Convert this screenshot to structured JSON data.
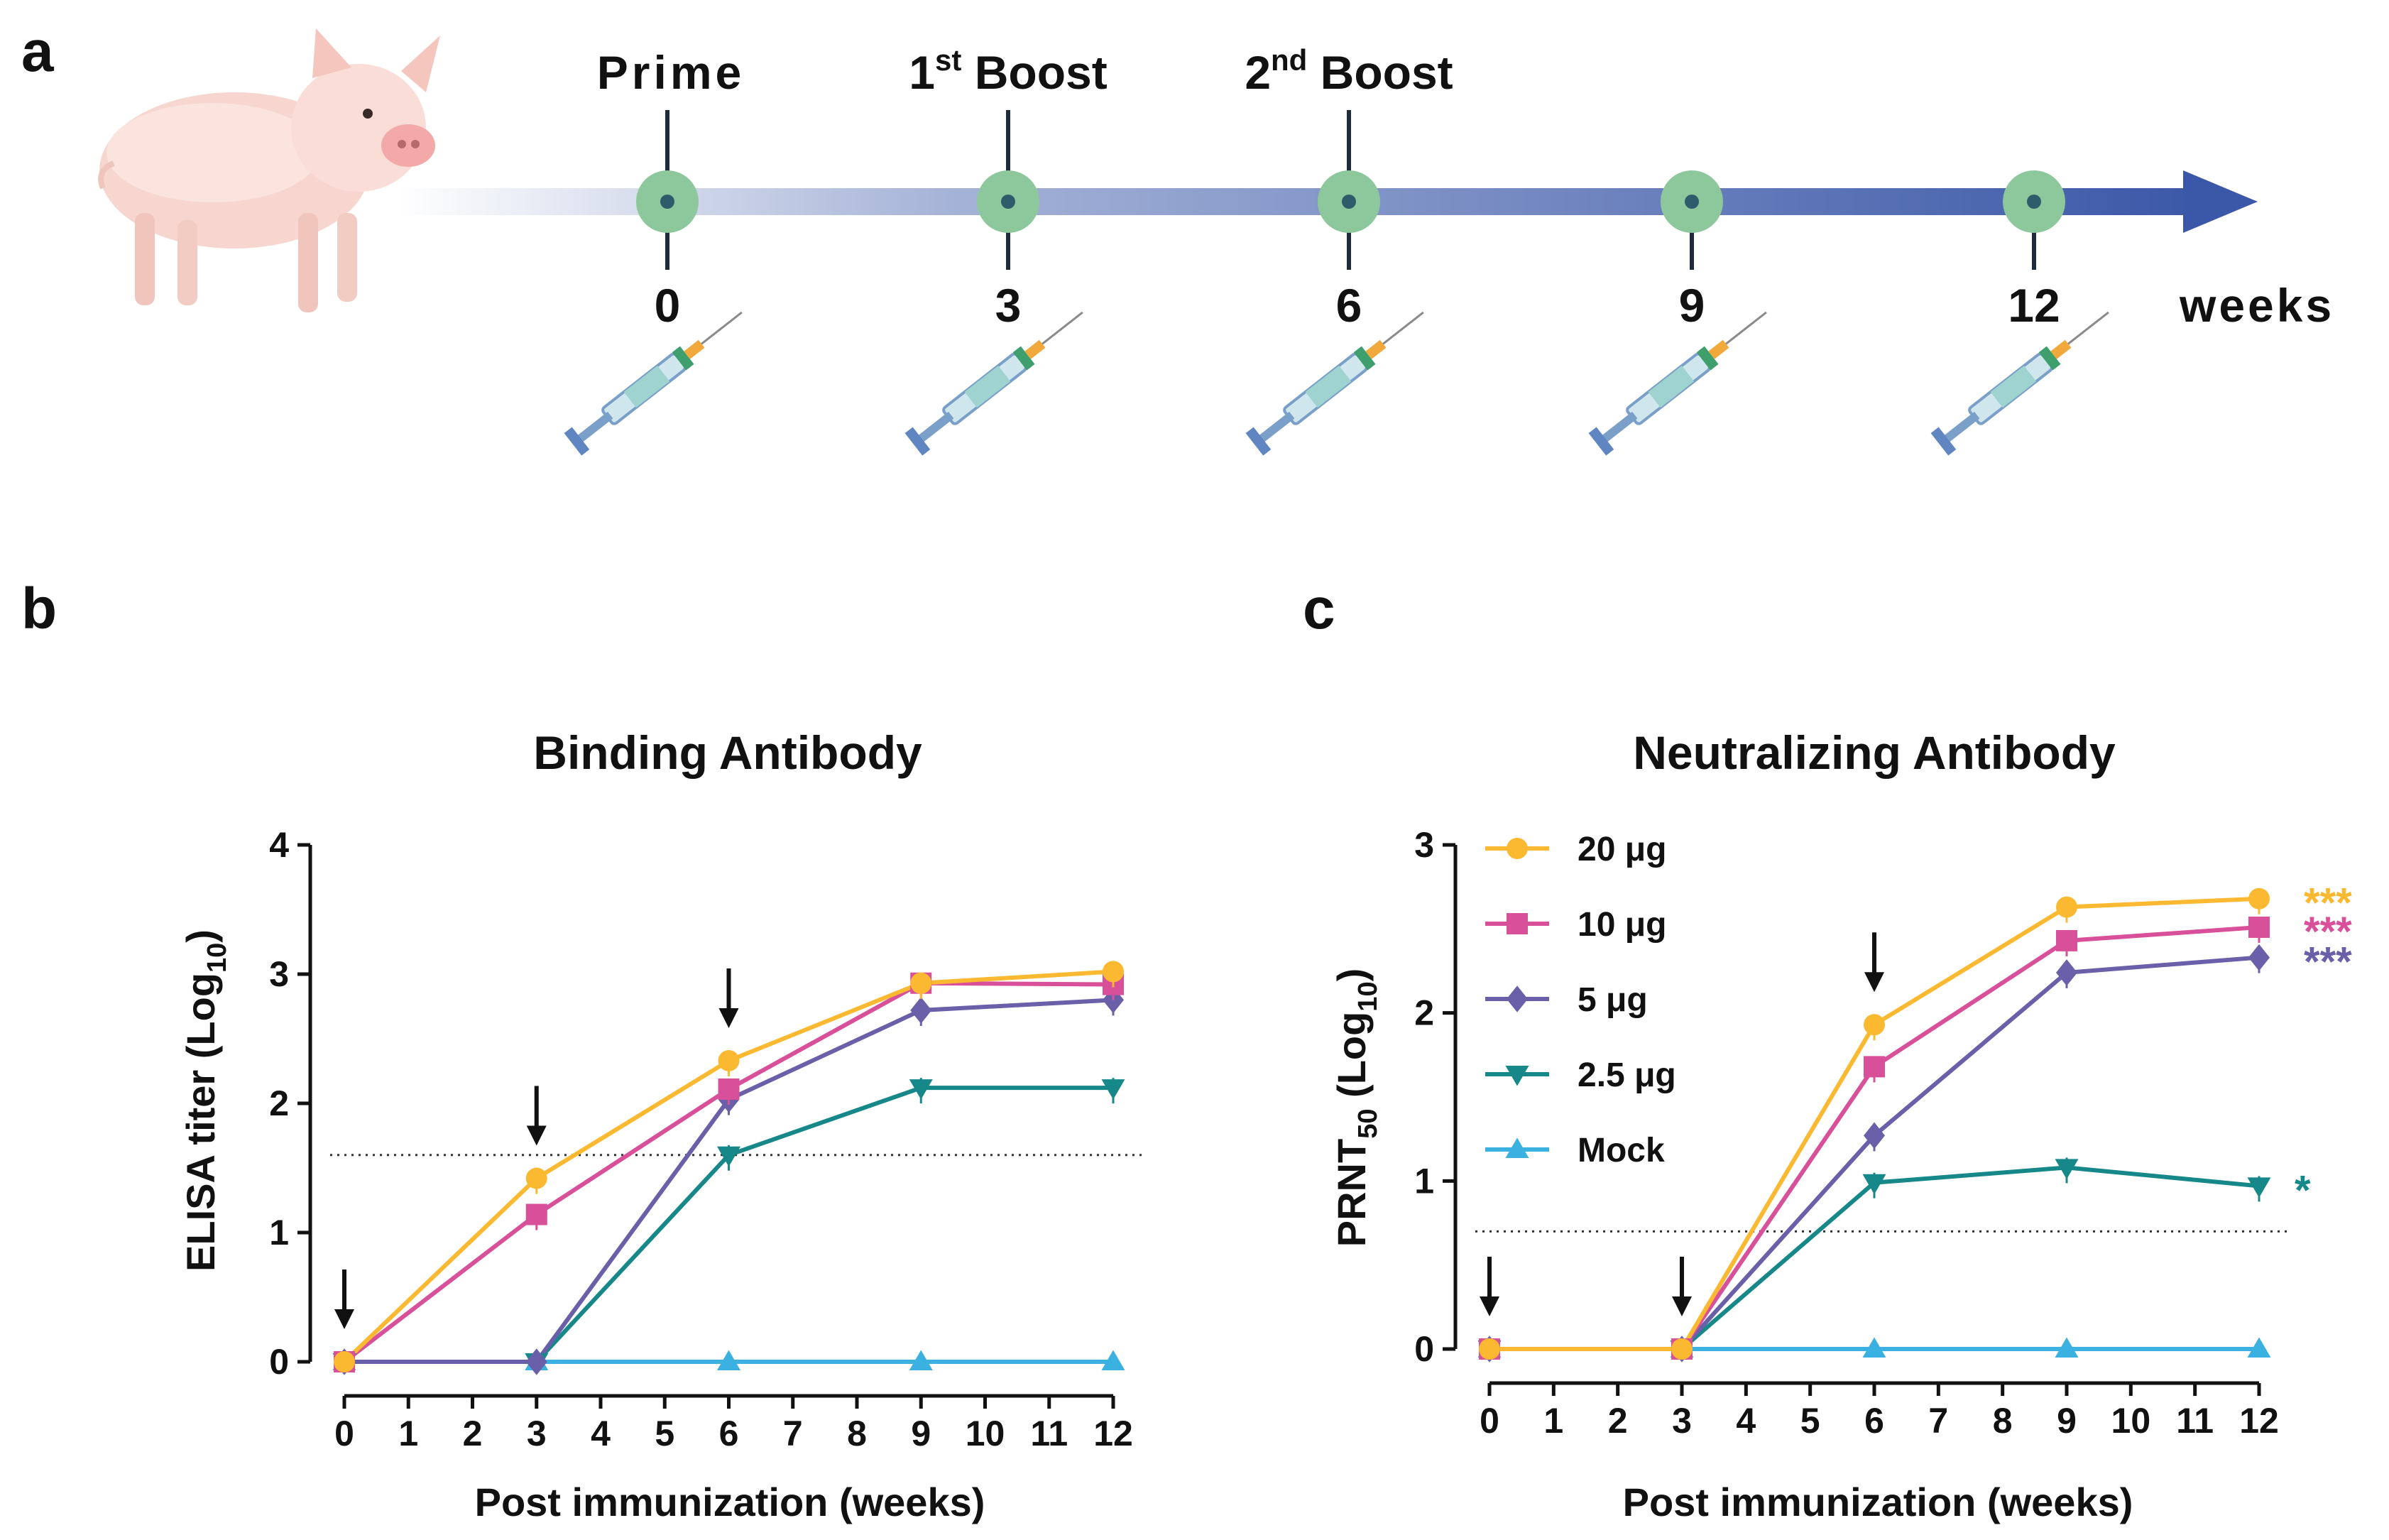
{
  "panels": {
    "a": "a",
    "b": "b",
    "c": "c"
  },
  "timeline": {
    "events": [
      {
        "label": "Prime",
        "week": 0
      },
      {
        "label_pre": "1",
        "label_sup": "st",
        "label_post": " Boost",
        "week": 3
      },
      {
        "label_pre": "2",
        "label_sup": "nd",
        "label_post": " Boost",
        "week": 6
      }
    ],
    "weeks": [
      "0",
      "3",
      "6",
      "9",
      "12"
    ],
    "unit": "weeks",
    "colors": {
      "arrow": "#3b58a8",
      "node": "#8dc89d",
      "node_dot": "#2f5c6b",
      "stem": "#1e2b3c"
    },
    "icons": [
      "pig-illustration",
      "syringe-icon"
    ]
  },
  "legend": [
    {
      "label": "20 μg",
      "color": "#fbb931",
      "marker": "circle"
    },
    {
      "label": "10 μg",
      "color": "#d9509a",
      "marker": "square"
    },
    {
      "label": "5 μg",
      "color": "#6a5fa9",
      "marker": "diamond"
    },
    {
      "label": "2.5 μg",
      "color": "#17888a",
      "marker": "triangle-down"
    },
    {
      "label": "Mock",
      "color": "#3ab1e1",
      "marker": "triangle-up"
    }
  ],
  "chart_data": [
    {
      "type": "line",
      "title": "Binding Antibody",
      "xlabel": "Post immunization (weeks)",
      "ylabel_main": "ELISA titer (Log",
      "ylabel_sub": "10",
      "ylabel_end": ")",
      "xlim": [
        0,
        12
      ],
      "ylim": [
        0,
        4
      ],
      "xticks": [
        0,
        1,
        2,
        3,
        4,
        5,
        6,
        7,
        8,
        9,
        10,
        11,
        12
      ],
      "yticks": [
        0,
        1,
        2,
        3,
        4
      ],
      "threshold": 1.6,
      "arrows_at_weeks": [
        0,
        3,
        6
      ],
      "x": [
        0,
        3,
        6,
        9,
        12
      ],
      "series": [
        {
          "name": "20 μg",
          "values": [
            0,
            1.42,
            2.33,
            2.93,
            3.02
          ]
        },
        {
          "name": "10 μg",
          "values": [
            0,
            1.14,
            2.11,
            2.93,
            2.92
          ]
        },
        {
          "name": "5 μg",
          "values": [
            0,
            0,
            2.03,
            2.72,
            2.8
          ]
        },
        {
          "name": "2.5 μg",
          "values": [
            0,
            0,
            1.6,
            2.12,
            2.12
          ]
        },
        {
          "name": "Mock",
          "values": [
            0,
            0,
            0,
            0,
            0
          ]
        }
      ]
    },
    {
      "type": "line",
      "title": "Neutralizing Antibody",
      "xlabel": "Post immunization (weeks)",
      "ylabel_main": "PRNT",
      "ylabel_sub": "50",
      "ylabel_mid": " (Log",
      "ylabel_sub2": "10",
      "ylabel_end": ")",
      "xlim": [
        0,
        12
      ],
      "ylim": [
        0,
        3
      ],
      "xticks": [
        0,
        1,
        2,
        3,
        4,
        5,
        6,
        7,
        8,
        9,
        10,
        11,
        12
      ],
      "yticks": [
        0,
        1,
        2,
        3
      ],
      "threshold": 0.7,
      "arrows_at_weeks": [
        0,
        3,
        6
      ],
      "x": [
        0,
        3,
        6,
        9,
        12
      ],
      "series": [
        {
          "name": "20 μg",
          "values": [
            0,
            0,
            1.93,
            2.63,
            2.68
          ],
          "significance": "***"
        },
        {
          "name": "10 μg",
          "values": [
            0,
            0,
            1.68,
            2.43,
            2.51
          ],
          "significance": "***"
        },
        {
          "name": "5 μg",
          "values": [
            0,
            0,
            1.27,
            2.24,
            2.33
          ],
          "significance": "***"
        },
        {
          "name": "2.5 μg",
          "values": [
            0,
            0,
            0.99,
            1.08,
            0.97
          ],
          "significance": "*"
        },
        {
          "name": "Mock",
          "values": [
            0,
            0,
            0,
            0,
            0
          ],
          "significance": ""
        }
      ]
    }
  ]
}
